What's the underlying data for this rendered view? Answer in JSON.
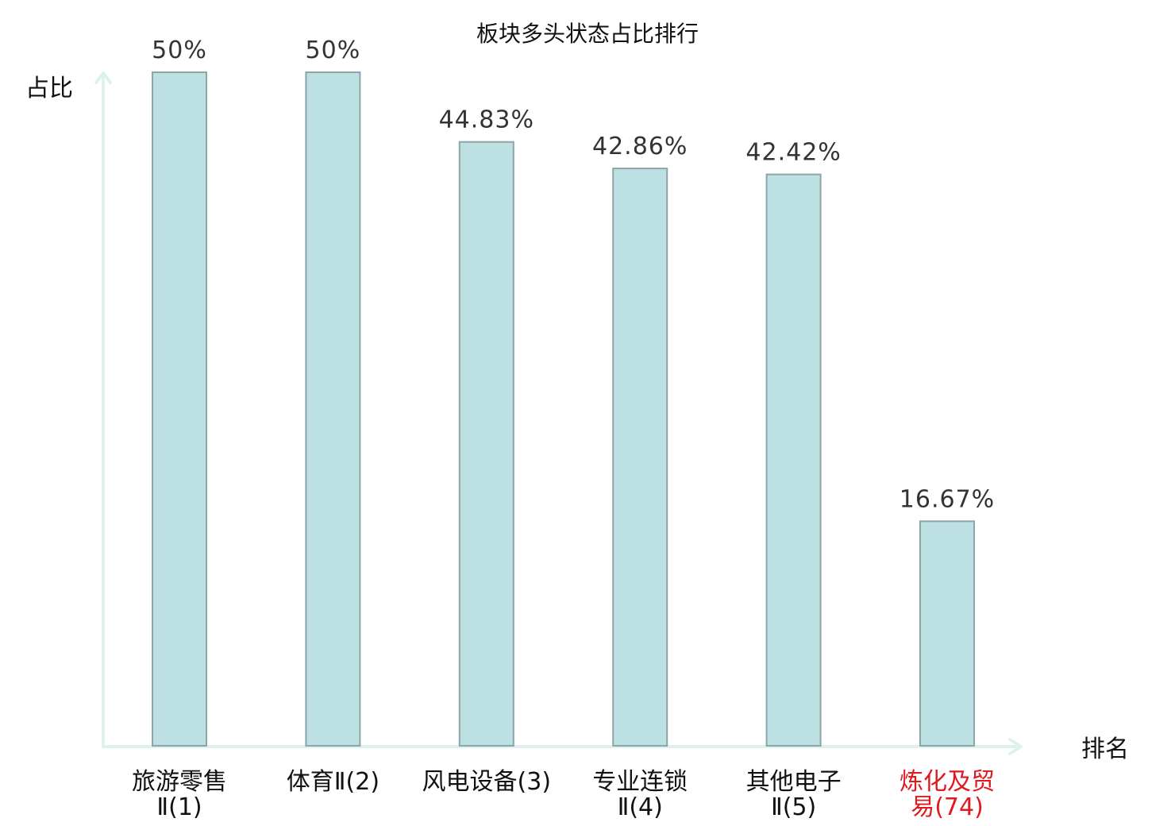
{
  "chart_data": {
    "type": "bar",
    "title": "板块多头状态占比排行",
    "ylabel": "占比",
    "xlabel": "排名",
    "ylim": [
      0,
      50
    ],
    "grid": false,
    "categories": [
      [
        "旅游零售",
        "Ⅱ(1)"
      ],
      [
        "体育Ⅱ(2)"
      ],
      [
        "风电设备(3)"
      ],
      [
        "专业连锁",
        "Ⅱ(4)"
      ],
      [
        "其他电子",
        "Ⅱ(5)"
      ],
      [
        "炼化及贸",
        "易(74)"
      ]
    ],
    "values": [
      50,
      50,
      44.83,
      42.86,
      42.42,
      16.67
    ],
    "value_labels": [
      "50%",
      "50%",
      "44.83%",
      "42.86%",
      "42.42%",
      "16.67%"
    ],
    "highlight_index": 5,
    "colors": {
      "bar_fill": "#bde0e3",
      "bar_stroke": "#8aa6a9",
      "axis": "#dff1ef",
      "highlight_text": "#e0191e"
    }
  }
}
